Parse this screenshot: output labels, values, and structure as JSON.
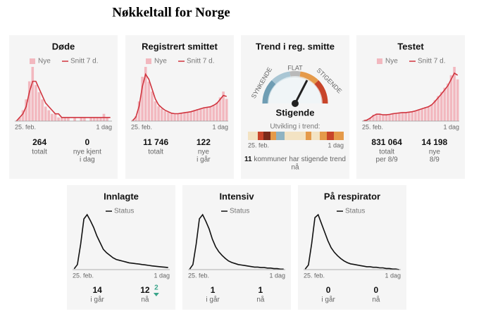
{
  "title": "Nøkkeltall for Norge",
  "chart_data": [
    {
      "type": "bar",
      "title": "Døde",
      "xlabels": [
        "25. feb.",
        "1 dag"
      ],
      "series": [
        {
          "name": "Nye",
          "type": "bar",
          "color": "#f2b8bf",
          "values": [
            0,
            1,
            3,
            6,
            11,
            15,
            10,
            8,
            6,
            4,
            3,
            2,
            2,
            1,
            1,
            1,
            1,
            0,
            1,
            0,
            1,
            1,
            0,
            1,
            1,
            1,
            1,
            2,
            1,
            0
          ]
        },
        {
          "name": "Snitt 7 d.",
          "type": "line",
          "color": "#d0353f",
          "values": [
            0,
            1,
            2,
            4,
            8,
            11,
            11,
            9,
            7,
            5,
            4,
            3,
            2,
            2,
            1,
            1,
            1,
            1,
            1,
            1,
            1,
            1,
            1,
            1,
            1,
            1,
            1,
            1,
            1,
            1
          ]
        }
      ],
      "stats": [
        {
          "value": "264",
          "label": [
            "totalt"
          ]
        },
        {
          "value": "0",
          "label": [
            "nye kjent",
            "i dag"
          ]
        }
      ]
    },
    {
      "type": "bar",
      "title": "Registrert smittet",
      "xlabels": [
        "25. feb.",
        "1 dag"
      ],
      "series": [
        {
          "name": "Nye",
          "type": "bar",
          "color": "#f2b8bf",
          "values": [
            2,
            10,
            40,
            90,
            110,
            80,
            60,
            40,
            30,
            25,
            20,
            18,
            15,
            14,
            15,
            16,
            17,
            18,
            20,
            22,
            24,
            26,
            28,
            27,
            30,
            33,
            38,
            48,
            60,
            45
          ]
        },
        {
          "name": "Snitt 7 d.",
          "type": "line",
          "color": "#d0353f",
          "values": [
            1,
            8,
            30,
            70,
            95,
            85,
            65,
            45,
            33,
            27,
            22,
            19,
            16,
            15,
            15,
            16,
            17,
            18,
            19,
            21,
            23,
            25,
            27,
            28,
            29,
            32,
            36,
            44,
            52,
            50
          ]
        }
      ],
      "stats": [
        {
          "value": "11 746",
          "label": [
            "totalt"
          ]
        },
        {
          "value": "122",
          "label": [
            "nye",
            "i går"
          ]
        }
      ]
    },
    {
      "type": "bar",
      "title": "Testet",
      "xlabels": [
        "25. feb.",
        "1 dag"
      ],
      "series": [
        {
          "name": "Nye",
          "type": "bar",
          "color": "#f2b8bf",
          "values": [
            100,
            300,
            800,
            1500,
            1800,
            1600,
            1400,
            1500,
            1700,
            1800,
            1900,
            2000,
            2100,
            2000,
            2200,
            2300,
            2500,
            2800,
            3000,
            3300,
            3500,
            4000,
            5000,
            6000,
            7000,
            8000,
            9000,
            11000,
            13000,
            10000
          ]
        },
        {
          "name": "Snitt 7 d.",
          "type": "line",
          "color": "#d0353f",
          "values": [
            80,
            250,
            700,
            1300,
            1650,
            1650,
            1500,
            1500,
            1600,
            1750,
            1850,
            1950,
            2050,
            2050,
            2150,
            2250,
            2450,
            2700,
            2950,
            3200,
            3450,
            3900,
            4700,
            5600,
            6500,
            7500,
            8500,
            10000,
            11500,
            11000
          ]
        }
      ],
      "stats": [
        {
          "value": "831 064",
          "label": [
            "totalt",
            "per 8/9"
          ]
        },
        {
          "value": "14 198",
          "label": [
            "nye",
            "8/9"
          ]
        }
      ]
    },
    {
      "type": "line",
      "title": "Innlagte",
      "xlabels": [
        "25. feb.",
        "1 dag"
      ],
      "series": [
        {
          "name": "Status",
          "type": "line",
          "color": "#111111",
          "values": [
            5,
            30,
            150,
            300,
            325,
            290,
            250,
            200,
            160,
            120,
            100,
            85,
            70,
            60,
            55,
            50,
            45,
            40,
            38,
            35,
            33,
            30,
            28,
            25,
            22,
            20,
            18,
            16,
            14,
            12
          ]
        }
      ],
      "stats": [
        {
          "value": "14",
          "label": [
            "i går"
          ]
        },
        {
          "value": "12",
          "label": [
            "nå"
          ],
          "change": "2"
        }
      ]
    },
    {
      "type": "line",
      "title": "Intensiv",
      "xlabels": [
        "25. feb.",
        "1 dag"
      ],
      "series": [
        {
          "name": "Status",
          "type": "line",
          "color": "#111111",
          "values": [
            1,
            10,
            50,
            100,
            108,
            95,
            80,
            60,
            45,
            35,
            28,
            22,
            17,
            14,
            12,
            10,
            9,
            8,
            7,
            6,
            5,
            5,
            4,
            4,
            3,
            3,
            2,
            2,
            1,
            1
          ]
        }
      ],
      "stats": [
        {
          "value": "1",
          "label": [
            "i går"
          ]
        },
        {
          "value": "1",
          "label": [
            "nå"
          ]
        }
      ]
    },
    {
      "type": "line",
      "title": "På respirator",
      "xlabels": [
        "25. feb.",
        "1 dag"
      ],
      "series": [
        {
          "name": "Status",
          "type": "line",
          "color": "#111111",
          "values": [
            1,
            8,
            45,
            90,
            95,
            80,
            65,
            50,
            38,
            30,
            24,
            19,
            15,
            12,
            10,
            9,
            8,
            7,
            6,
            5,
            5,
            4,
            4,
            3,
            3,
            2,
            2,
            1,
            1,
            0
          ]
        }
      ],
      "stats": [
        {
          "value": "0",
          "label": [
            "i går"
          ]
        },
        {
          "value": "0",
          "label": [
            "nå"
          ]
        }
      ]
    }
  ],
  "trend": {
    "title": "Trend i reg. smitte",
    "gauge_labels": [
      "SYNKENDE",
      "FLAT",
      "STIGENDE"
    ],
    "status": "Stigende",
    "strip_label": "Utvikling i trend:",
    "xlabels": [
      "25. feb.",
      "1 dag"
    ],
    "count": "11",
    "count_text": [
      "kommuner har stigende trend",
      "nå"
    ]
  }
}
